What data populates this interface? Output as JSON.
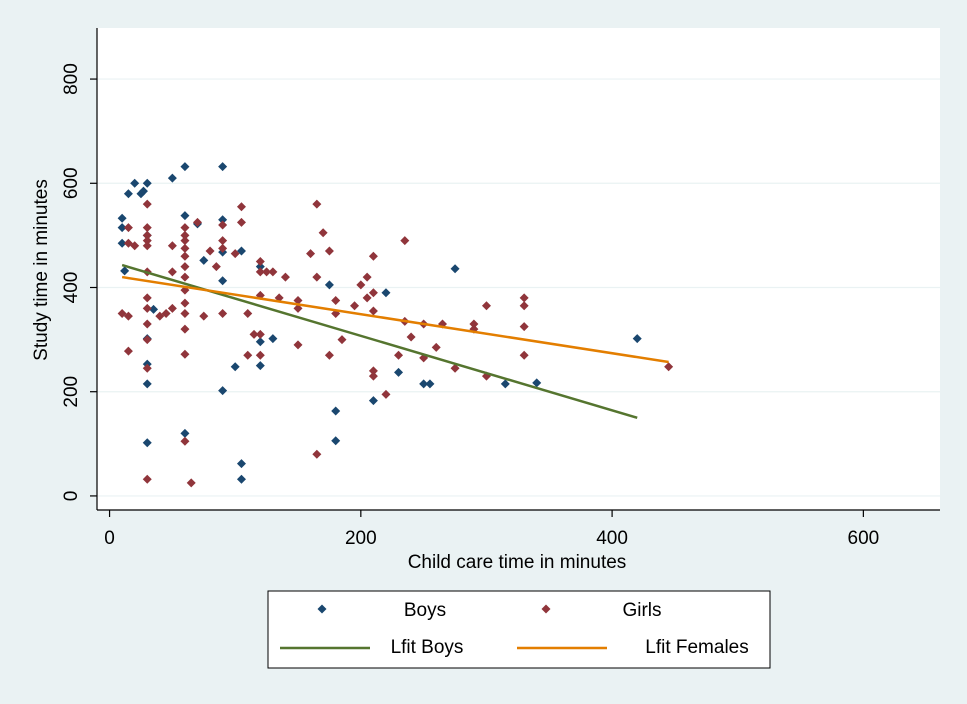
{
  "chart_data": {
    "type": "scatter",
    "xlabel": "Child care time in minutes",
    "ylabel": "Study time in minutes",
    "xlim": [
      -10,
      661
    ],
    "ylim": [
      -27,
      898
    ],
    "xticks": [
      0,
      200,
      400,
      600
    ],
    "yticks": [
      0,
      200,
      400,
      600,
      800
    ],
    "grid": true,
    "series": [
      {
        "name": "Boys",
        "type": "scatter",
        "color": "#1a476f",
        "x": [
          10,
          10,
          10,
          12,
          15,
          20,
          25,
          27,
          30,
          30,
          30,
          30,
          30,
          30,
          35,
          50,
          60,
          60,
          60,
          70,
          75,
          90,
          90,
          90,
          90,
          90,
          100,
          105,
          105,
          105,
          120,
          120,
          120,
          130,
          175,
          180,
          180,
          210,
          220,
          230,
          250,
          255,
          275,
          315,
          340,
          420
        ],
        "values": [
          533,
          515,
          485,
          432,
          580,
          600,
          580,
          585,
          600,
          500,
          302,
          253,
          215,
          102,
          358,
          610,
          632,
          538,
          120,
          522,
          452,
          632,
          530,
          468,
          413,
          202,
          248,
          470,
          62,
          32,
          250,
          296,
          440,
          302,
          405,
          163,
          106,
          183,
          390,
          237,
          215,
          215,
          436,
          215,
          217,
          302
        ]
      },
      {
        "name": "Girls",
        "type": "scatter",
        "color": "#90353b",
        "x": [
          10,
          15,
          15,
          15,
          15,
          20,
          30,
          30,
          30,
          30,
          30,
          30,
          30,
          30,
          30,
          30,
          30,
          30,
          40,
          45,
          50,
          50,
          50,
          60,
          60,
          60,
          60,
          60,
          60,
          60,
          60,
          60,
          60,
          60,
          60,
          60,
          65,
          70,
          75,
          80,
          85,
          90,
          90,
          90,
          90,
          100,
          105,
          105,
          110,
          110,
          115,
          120,
          120,
          120,
          120,
          120,
          125,
          130,
          135,
          140,
          150,
          150,
          150,
          160,
          165,
          165,
          165,
          170,
          175,
          175,
          180,
          180,
          185,
          195,
          200,
          205,
          205,
          210,
          210,
          210,
          210,
          210,
          220,
          230,
          235,
          235,
          240,
          250,
          250,
          260,
          265,
          275,
          290,
          290,
          300,
          300,
          330,
          330,
          330,
          330,
          445
        ],
        "values": [
          350,
          345,
          278,
          485,
          515,
          480,
          560,
          515,
          500,
          490,
          480,
          430,
          380,
          360,
          330,
          300,
          245,
          32,
          345,
          350,
          360,
          430,
          480,
          515,
          500,
          490,
          475,
          460,
          440,
          420,
          395,
          370,
          350,
          320,
          272,
          105,
          25,
          525,
          345,
          470,
          440,
          520,
          490,
          475,
          350,
          465,
          555,
          525,
          270,
          350,
          310,
          450,
          430,
          385,
          310,
          270,
          430,
          430,
          380,
          420,
          375,
          360,
          290,
          465,
          560,
          420,
          80,
          505,
          470,
          270,
          375,
          350,
          300,
          365,
          405,
          420,
          380,
          460,
          390,
          355,
          240,
          230,
          195,
          270,
          490,
          335,
          305,
          330,
          265,
          285,
          330,
          245,
          330,
          320,
          365,
          230,
          380,
          365,
          325,
          270,
          248
        ]
      },
      {
        "name": "Lfit Boys",
        "type": "line",
        "color": "#55752f",
        "x": [
          10,
          420
        ],
        "values": [
          443,
          150
        ]
      },
      {
        "name": "Lfit Females",
        "type": "line",
        "color": "#e37e00",
        "x": [
          10,
          445
        ],
        "values": [
          420,
          257
        ]
      }
    ]
  }
}
